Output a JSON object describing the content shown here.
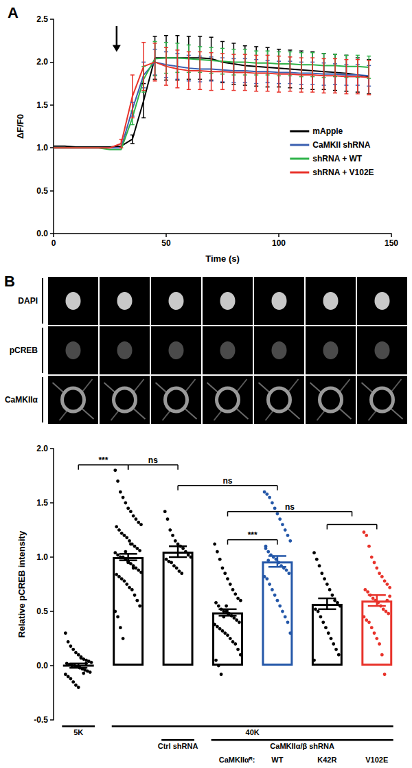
{
  "chart_data": [
    {
      "type": "line",
      "title": "A",
      "x_label": "Time (s)",
      "y_label": "ΔF/F0",
      "x": [
        0,
        5,
        10,
        15,
        20,
        25,
        30,
        35,
        40,
        45,
        50,
        55,
        60,
        65,
        70,
        75,
        80,
        85,
        90,
        95,
        100,
        105,
        110,
        115,
        120,
        125,
        130,
        135,
        140
      ],
      "series": [
        {
          "name": "mApple",
          "color": "#000000",
          "values": [
            1.02,
            1.02,
            1.01,
            1.01,
            1.01,
            1.01,
            1.02,
            1.1,
            1.55,
            2.05,
            2.05,
            2.05,
            2.05,
            2.05,
            2.04,
            2.0,
            1.98,
            1.96,
            1.95,
            1.94,
            1.93,
            1.92,
            1.91,
            1.9,
            1.89,
            1.88,
            1.87,
            1.85,
            1.83
          ],
          "errors": [
            0,
            0,
            0,
            0,
            0,
            0,
            0,
            0.05,
            0.2,
            0.25,
            0.26,
            0.26,
            0.25,
            0.25,
            0.25,
            0.24,
            0.24,
            0.23,
            0.23,
            0.23,
            0.22,
            0.22,
            0.22,
            0.22,
            0.21,
            0.21,
            0.21,
            0.2,
            0.2
          ]
        },
        {
          "name": "CaMKII shRNA",
          "color": "#3a5fb0",
          "values": [
            1.0,
            1.0,
            1.0,
            1.0,
            1.0,
            1.0,
            1.0,
            1.45,
            1.85,
            2.0,
            1.97,
            1.95,
            1.93,
            1.92,
            1.92,
            1.91,
            1.9,
            1.9,
            1.89,
            1.89,
            1.88,
            1.88,
            1.87,
            1.87,
            1.86,
            1.86,
            1.85,
            1.85,
            1.84
          ],
          "errors": [
            0,
            0,
            0,
            0,
            0,
            0,
            0,
            0.08,
            0.15,
            0.15,
            0.15,
            0.15,
            0.15,
            0.15,
            0.14,
            0.14,
            0.14,
            0.14,
            0.14,
            0.13,
            0.13,
            0.13,
            0.13,
            0.13,
            0.13,
            0.12,
            0.12,
            0.12,
            0.12
          ]
        },
        {
          "name": "shRNA + WT",
          "color": "#2fb34a",
          "values": [
            1.0,
            1.0,
            1.0,
            1.0,
            1.0,
            0.98,
            0.98,
            1.35,
            1.8,
            2.04,
            2.05,
            2.05,
            2.04,
            2.03,
            2.02,
            2.01,
            2.0,
            2.0,
            1.99,
            1.99,
            1.98,
            1.98,
            1.97,
            1.97,
            1.96,
            1.96,
            1.95,
            1.95,
            1.94
          ],
          "errors": [
            0,
            0,
            0,
            0,
            0,
            0,
            0,
            0.08,
            0.15,
            0.2,
            0.18,
            0.17,
            0.16,
            0.15,
            0.15,
            0.15,
            0.15,
            0.15,
            0.14,
            0.14,
            0.14,
            0.14,
            0.14,
            0.14,
            0.14,
            0.13,
            0.13,
            0.13,
            0.13
          ]
        },
        {
          "name": "shRNA + V102E",
          "color": "#e8332b",
          "values": [
            1.0,
            1.0,
            1.0,
            1.0,
            1.0,
            1.0,
            1.05,
            1.6,
            1.95,
            2.0,
            1.95,
            1.92,
            1.9,
            1.9,
            1.89,
            1.89,
            1.88,
            1.88,
            1.87,
            1.87,
            1.86,
            1.86,
            1.85,
            1.85,
            1.84,
            1.84,
            1.83,
            1.83,
            1.82
          ],
          "errors": [
            0,
            0,
            0,
            0,
            0,
            0,
            0.05,
            0.25,
            0.28,
            0.22,
            0.22,
            0.22,
            0.22,
            0.22,
            0.22,
            0.21,
            0.21,
            0.21,
            0.21,
            0.21,
            0.21,
            0.2,
            0.2,
            0.2,
            0.2,
            0.2,
            0.2,
            0.2,
            0.2
          ]
        }
      ],
      "xlim": [
        0,
        150
      ],
      "xticks": [
        0,
        50,
        100,
        150
      ],
      "ylim": [
        0,
        2.5
      ],
      "yticks": [
        {
          "value": 0,
          "label": "0.0"
        },
        0.5,
        {
          "value": 1,
          "label": "1.0"
        },
        1.5,
        {
          "value": 2,
          "label": "2.0"
        },
        2.5
      ],
      "grid": false,
      "legend": "right",
      "arrow": {
        "x": 28,
        "y_from": 2.42,
        "y_to": 2.12
      }
    },
    {
      "type": "bar",
      "title": "B",
      "y_label": "Relative pCREB intensity",
      "categories": [
        null,
        null,
        null,
        null,
        null,
        null,
        null
      ],
      "values": [
        0.0,
        1.0,
        1.05,
        0.49,
        0.96,
        0.57,
        0.6
      ],
      "errors": [
        0.02,
        0.03,
        0.05,
        0.03,
        0.05,
        0.05,
        0.05
      ],
      "colors": [
        "#000000",
        "#000000",
        "#000000",
        "#000000",
        "#2457a8",
        "#000000",
        "#e8332b"
      ],
      "points": [
        [
          0.3,
          0.22,
          0.18,
          0.15,
          0.12,
          0.1,
          0.08,
          0.06,
          0.05,
          0.04,
          0.03,
          0.02,
          0.01,
          0.0,
          0.0,
          -0.01,
          -0.02,
          -0.03,
          -0.04,
          -0.05,
          -0.06,
          -0.08,
          -0.1,
          -0.12,
          -0.15,
          -0.18,
          -0.2,
          0.07,
          -0.07,
          0.02
        ],
        [
          1.8,
          1.7,
          1.6,
          1.55,
          1.5,
          1.45,
          1.42,
          1.38,
          1.35,
          1.32,
          1.3,
          1.28,
          1.25,
          1.22,
          1.2,
          1.18,
          1.15,
          1.12,
          1.1,
          1.08,
          1.06,
          1.04,
          1.02,
          1.0,
          1.0,
          0.98,
          0.96,
          0.94,
          0.92,
          0.9,
          0.88,
          0.86,
          0.84,
          0.82,
          0.8,
          0.78,
          0.75,
          0.72,
          0.7,
          0.65,
          0.6,
          0.55,
          0.5,
          0.45,
          0.35,
          0.25,
          1.05,
          0.95,
          1.12,
          0.9
        ],
        [
          1.42,
          1.35,
          1.25,
          1.2,
          1.15,
          1.12,
          1.1,
          1.08,
          1.05,
          1.02,
          1.0,
          0.98,
          0.96,
          0.95,
          0.92,
          0.9,
          0.87,
          0.85
        ],
        [
          1.12,
          1.05,
          0.98,
          0.9,
          0.85,
          0.8,
          0.75,
          0.7,
          0.66,
          0.62,
          0.6,
          0.58,
          0.55,
          0.52,
          0.5,
          0.5,
          0.48,
          0.46,
          0.44,
          0.42,
          0.4,
          0.38,
          0.36,
          0.34,
          0.32,
          0.3,
          0.28,
          0.25,
          0.22,
          0.2,
          0.15,
          0.1,
          0.05,
          0.0,
          -0.08,
          0.45,
          0.55
        ],
        [
          1.6,
          1.58,
          1.55,
          1.5,
          1.45,
          1.4,
          1.35,
          1.3,
          1.25,
          1.2,
          1.15,
          1.1,
          1.05,
          1.02,
          1.0,
          0.98,
          0.95,
          0.92,
          0.9,
          0.88,
          0.85,
          0.82,
          0.8,
          0.75,
          0.7,
          0.65,
          0.6,
          0.55,
          0.5,
          0.45,
          0.4,
          0.3,
          1.08,
          0.97
        ],
        [
          1.04,
          0.98,
          0.92,
          0.85,
          0.8,
          0.75,
          0.7,
          0.65,
          0.6,
          0.58,
          0.55,
          0.52,
          0.5,
          0.45,
          0.4,
          0.35,
          0.3,
          0.25,
          0.2,
          0.15,
          0.1,
          0.05
        ],
        [
          1.23,
          1.2,
          1.1,
          1.0,
          0.95,
          0.9,
          0.85,
          0.82,
          0.78,
          0.75,
          0.72,
          0.7,
          0.68,
          0.65,
          0.62,
          0.6,
          0.58,
          0.55,
          0.52,
          0.5,
          0.48,
          0.45,
          0.42,
          0.4,
          0.35,
          0.3,
          0.25,
          0.2,
          0.1,
          -0.08,
          0.6,
          0.64
        ]
      ],
      "ylim": [
        -0.5,
        2
      ],
      "yticks": [
        -0.5,
        {
          "value": 0,
          "label": "0.0"
        },
        0.5,
        {
          "value": 1,
          "label": "1.0"
        },
        1.5,
        {
          "value": 2,
          "label": "2.0"
        }
      ],
      "grid": false,
      "significance": [
        {
          "from": 0,
          "to": 1,
          "y": 1.85,
          "label": "***"
        },
        {
          "from": 1,
          "to": 2,
          "y": 1.85,
          "label": "ns"
        },
        {
          "from": 2,
          "to": 4,
          "y": 1.66,
          "label": "ns"
        },
        {
          "from": 3,
          "to": 5.5,
          "y": 1.42,
          "label": "ns"
        },
        {
          "from": 5,
          "to": 6,
          "y": 1.3
        },
        {
          "from": 3,
          "to": 4,
          "y": 1.16,
          "label": "***"
        }
      ],
      "group_labels": [
        {
          "items": [
            {
              "label": "5K",
              "from": 0,
              "to": 0
            },
            {
              "label": "40K",
              "from": 1,
              "to": 6
            }
          ]
        },
        {
          "items": [
            {
              "label": "Ctrl shRNA",
              "from": 2,
              "to": 2
            },
            {
              "label": "CaMKIIα/β shRNA",
              "from": 3,
              "to": 6
            }
          ]
        },
        {
          "title": "CaMKIIαᴿ:",
          "items": [
            {
              "label": "WT",
              "at": 4
            },
            {
              "label": "K42R",
              "at": 5
            },
            {
              "label": "V102E",
              "at": 6
            }
          ]
        }
      ]
    }
  ],
  "image_panel": {
    "rows": [
      "DAPI",
      "pCREB",
      "CaMKIIα"
    ],
    "columns": 7
  }
}
